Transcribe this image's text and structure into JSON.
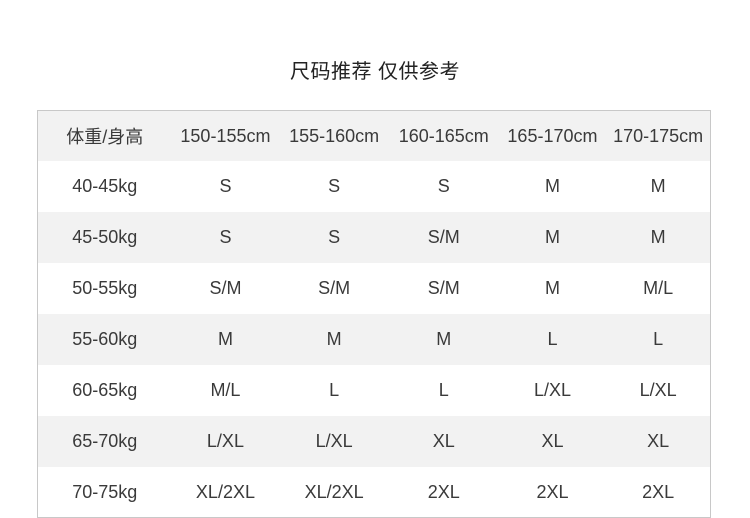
{
  "title": "尺码推荐 仅供参考",
  "table": {
    "headers": [
      "体重/身高",
      "150-155cm",
      "155-160cm",
      "160-165cm",
      "165-170cm",
      "170-175cm"
    ],
    "rows": [
      [
        "40-45kg",
        "S",
        "S",
        "S",
        "M",
        "M"
      ],
      [
        "45-50kg",
        "S",
        "S",
        "S/M",
        "M",
        "M"
      ],
      [
        "50-55kg",
        "S/M",
        "S/M",
        "S/M",
        "M",
        "M/L"
      ],
      [
        "55-60kg",
        "M",
        "M",
        "M",
        "L",
        "L"
      ],
      [
        "60-65kg",
        "M/L",
        "L",
        "L",
        "L/XL",
        "L/XL"
      ],
      [
        "65-70kg",
        "L/XL",
        "L/XL",
        "XL",
        "XL",
        "XL"
      ],
      [
        "70-75kg",
        "XL/2XL",
        "XL/2XL",
        "2XL",
        "2XL",
        "2XL"
      ]
    ]
  },
  "colors": {
    "stripe": "#f2f2f2",
    "border": "#c8c8c8",
    "text": "#3a3a3a"
  }
}
